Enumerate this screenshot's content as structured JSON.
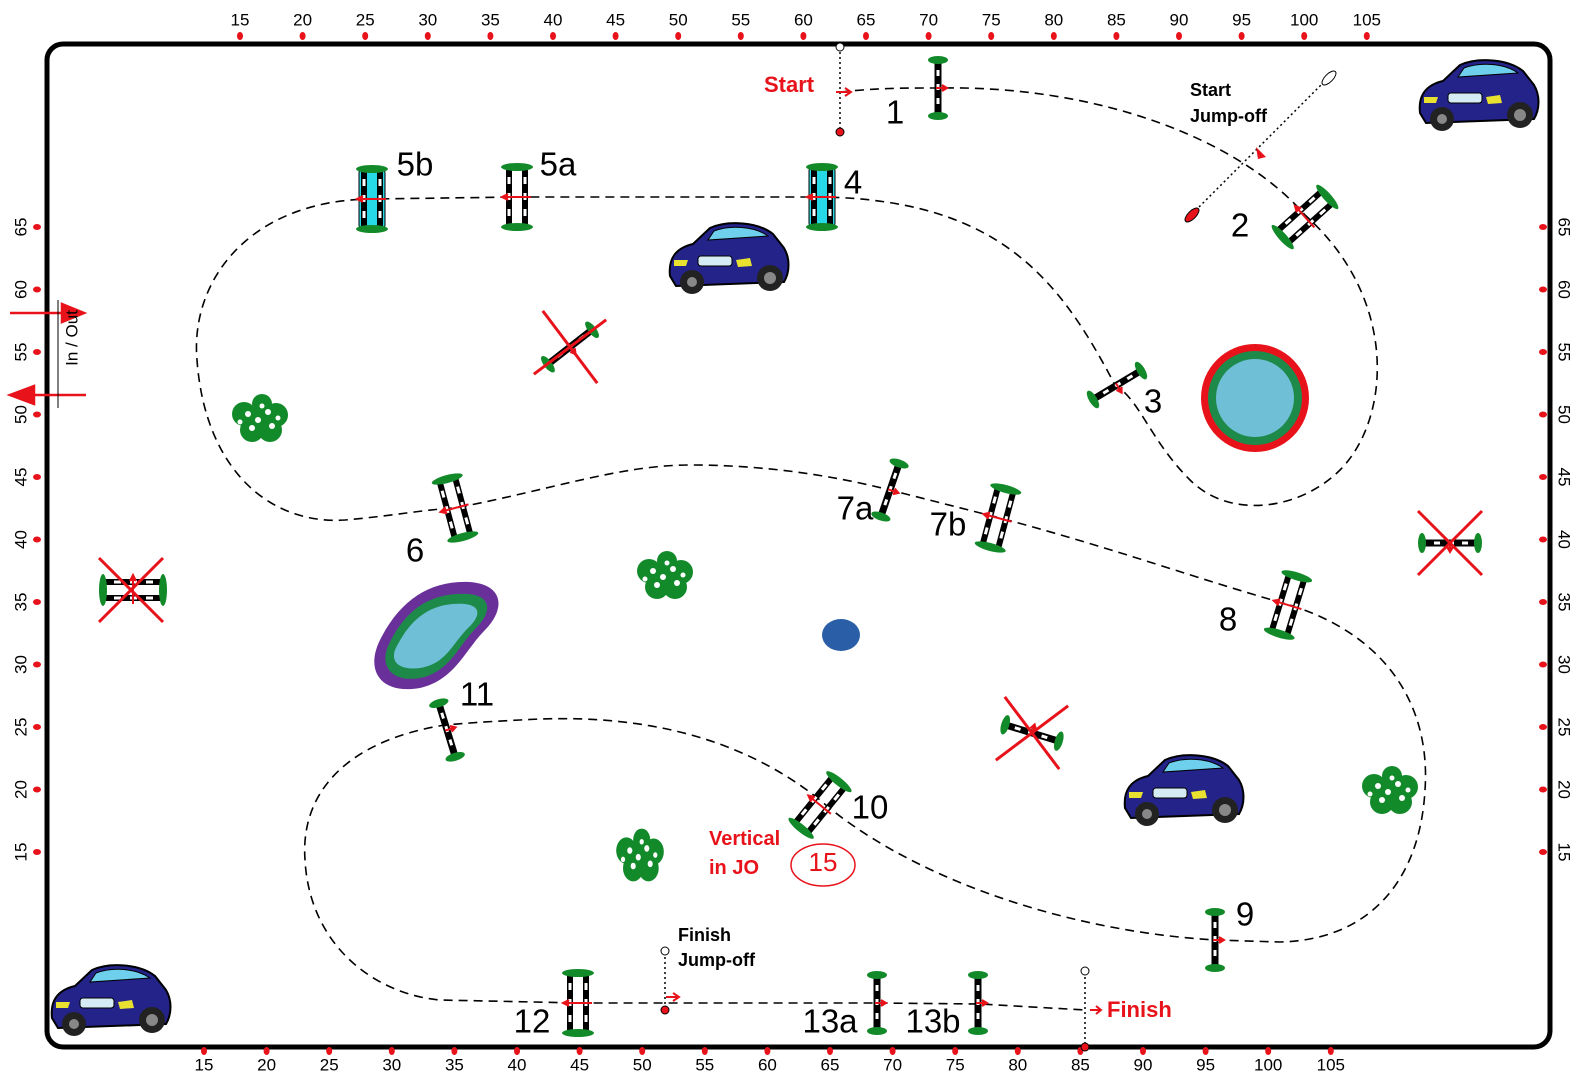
{
  "rulers": {
    "top": [
      15,
      20,
      25,
      30,
      35,
      40,
      45,
      50,
      55,
      60,
      65,
      70,
      75,
      80,
      85,
      90,
      95,
      100,
      105
    ],
    "bottom": [
      15,
      20,
      25,
      30,
      35,
      40,
      45,
      50,
      55,
      60,
      65,
      70,
      75,
      80,
      85,
      90,
      95,
      100,
      105
    ],
    "left": [
      65,
      60,
      55,
      50,
      45,
      40,
      35,
      30,
      25,
      20,
      15
    ],
    "right": [
      65,
      60,
      55,
      50,
      45,
      40,
      35,
      30,
      25,
      20,
      15
    ]
  },
  "entrance": "In / Out",
  "start": "Start",
  "start_jump_off": [
    "Start",
    "Jump-off"
  ],
  "finish": "Finish",
  "finish_jump_off": [
    "Finish",
    "Jump-off"
  ],
  "fences": [
    "1",
    "2",
    "3",
    "4",
    "5a",
    "5b",
    "6",
    "7a",
    "7b",
    "8",
    "9",
    "10",
    "11",
    "12",
    "13a",
    "13b"
  ],
  "note": {
    "lines": [
      "Vertical",
      "in JO"
    ],
    "fence": "15"
  }
}
